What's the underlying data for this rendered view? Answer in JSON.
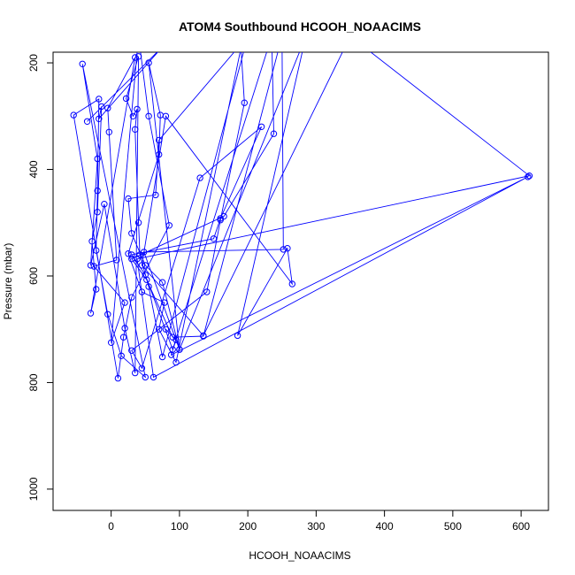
{
  "chart_data": {
    "type": "line",
    "title": "ATOM4 Southbound HCOOH_NOAACIMS",
    "xlabel": "HCOOH_NOAACIMS",
    "ylabel": "Pressure (mbar)",
    "xlim": [
      -85,
      640
    ],
    "ylim": [
      1040,
      180
    ],
    "y_reversed": true,
    "x_ticks": [
      0,
      100,
      200,
      300,
      400,
      500,
      600
    ],
    "y_ticks": [
      200,
      400,
      600,
      800,
      1000
    ],
    "grid": false,
    "legend": "none",
    "line_color": "#0000ff",
    "marker": "open-circle",
    "series": [
      {
        "points": [
          [
            -35,
            310
          ],
          [
            75,
            170
          ],
          [
            -18,
            305
          ],
          [
            -14,
            282
          ],
          [
            -20,
            480
          ],
          [
            -28,
            535
          ],
          [
            -22,
            625
          ],
          [
            -30,
            670
          ],
          [
            35,
            190
          ],
          [
            -5,
            285
          ],
          [
            -3,
            330
          ],
          [
            8,
            570
          ],
          [
            -25,
            582
          ],
          [
            20,
            650
          ],
          [
            0,
            725
          ],
          [
            40,
            150
          ],
          [
            55,
            300
          ],
          [
            85,
            505
          ],
          [
            30,
            640
          ],
          [
            18,
            715
          ],
          [
            10,
            792
          ],
          [
            -55,
            298
          ],
          [
            -18,
            268
          ],
          [
            -20,
            440
          ],
          [
            -22,
            552
          ],
          [
            -5,
            672
          ],
          [
            15,
            750
          ],
          [
            50,
            790
          ],
          [
            -42,
            202
          ],
          [
            -20,
            380
          ],
          [
            -30,
            580
          ],
          [
            -10,
            465
          ],
          [
            20,
            698
          ],
          [
            35,
            782
          ],
          [
            40,
            188
          ],
          [
            22,
            267
          ],
          [
            32,
            300
          ],
          [
            38,
            287
          ],
          [
            35,
            325
          ],
          [
            40,
            500
          ],
          [
            42,
            560
          ],
          [
            55,
            620
          ],
          [
            75,
            752
          ],
          [
            200,
            150
          ],
          [
            70,
            345
          ],
          [
            65,
            448
          ],
          [
            25,
            455
          ],
          [
            30,
            520
          ],
          [
            50,
            580
          ],
          [
            75,
            612
          ],
          [
            100,
            738
          ],
          [
            55,
            200
          ],
          [
            72,
            298
          ],
          [
            70,
            372
          ],
          [
            25,
            558
          ],
          [
            45,
            630
          ],
          [
            78,
            650
          ],
          [
            70,
            700
          ],
          [
            95,
            762
          ],
          [
            190,
            172
          ],
          [
            195,
            275
          ],
          [
            160,
            495
          ],
          [
            140,
            630
          ],
          [
            30,
            740
          ],
          [
            45,
            773
          ],
          [
            130,
            416
          ],
          [
            220,
            320
          ],
          [
            160,
            492
          ],
          [
            150,
            530
          ],
          [
            30,
            560
          ],
          [
            50,
            598
          ],
          [
            90,
            738
          ],
          [
            235,
            150
          ],
          [
            238,
            333
          ],
          [
            165,
            488
          ],
          [
            30,
            568
          ],
          [
            52,
            607
          ],
          [
            90,
            715
          ],
          [
            135,
            713
          ],
          [
            250,
            150
          ],
          [
            252,
            550
          ],
          [
            48,
            555
          ],
          [
            100,
            738
          ],
          [
            285,
            150
          ],
          [
            185,
            712
          ],
          [
            258,
            548
          ],
          [
            265,
            615
          ],
          [
            80,
            300
          ],
          [
            45,
            580
          ],
          [
            135,
            712
          ],
          [
            350,
            150
          ],
          [
            612,
            412
          ],
          [
            38,
            568
          ],
          [
            62,
            790
          ],
          [
            610,
            414
          ],
          [
            88,
            748
          ],
          [
            95,
            720
          ],
          [
            80,
            700
          ]
        ]
      }
    ]
  }
}
